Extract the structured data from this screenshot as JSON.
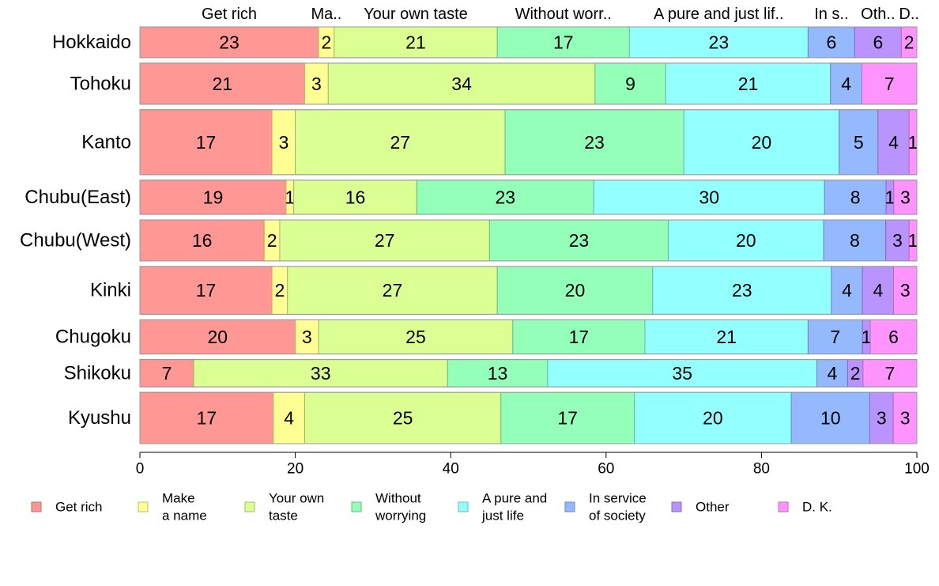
{
  "chart_data": {
    "type": "bar",
    "orientation": "horizontal",
    "stacked": true,
    "variable_width": true,
    "xlim": [
      0,
      100
    ],
    "xticks": [
      "0",
      "20",
      "40",
      "60",
      "80",
      "100"
    ],
    "categories": [
      "Hokkaido",
      "Tohoku",
      "Kanto",
      "Chubu(East)",
      "Chubu(West)",
      "Kinki",
      "Chugoku",
      "Shikoku",
      "Kyushu"
    ],
    "category_sizes": [
      0.9,
      1.2,
      1.9,
      1.0,
      1.2,
      1.4,
      1.0,
      0.8,
      1.5
    ],
    "top_labels": [
      "Get rich",
      "Ma..",
      "Your own taste",
      "Without worr..",
      "A pure and just lif..",
      "In s..",
      "Oth..",
      "D.."
    ],
    "series": [
      {
        "name": "Get rich",
        "legend": [
          "Get rich"
        ],
        "color": "#FF9794",
        "values": [
          23,
          21,
          17,
          19,
          16,
          17,
          20,
          7,
          17
        ]
      },
      {
        "name": "Make a name",
        "legend": [
          "Make",
          "a name"
        ],
        "color": "#FFFF94",
        "values": [
          2,
          3,
          3,
          1,
          2,
          2,
          3,
          0,
          4
        ]
      },
      {
        "name": "Your own taste",
        "legend": [
          "Your own",
          "taste"
        ],
        "color": "#DCFF94",
        "values": [
          21,
          34,
          27,
          16,
          27,
          27,
          25,
          33,
          25
        ]
      },
      {
        "name": "Without worrying",
        "legend": [
          "Without",
          "worrying"
        ],
        "color": "#94FFB9",
        "values": [
          17,
          9,
          23,
          23,
          23,
          20,
          17,
          13,
          17
        ]
      },
      {
        "name": "A pure and just life",
        "legend": [
          "A pure and",
          "just life"
        ],
        "color": "#94FFFF",
        "values": [
          23,
          21,
          20,
          30,
          20,
          23,
          21,
          35,
          20
        ]
      },
      {
        "name": "In service of society",
        "legend": [
          "In service",
          "of society"
        ],
        "color": "#94B9FF",
        "values": [
          6,
          4,
          5,
          8,
          8,
          4,
          7,
          4,
          10
        ]
      },
      {
        "name": "Other",
        "legend": [
          "Other"
        ],
        "color": "#B994FF",
        "values": [
          6,
          0,
          4,
          1,
          3,
          4,
          1,
          2,
          3
        ]
      },
      {
        "name": "D. K.",
        "legend": [
          "D. K."
        ],
        "color": "#FF94FF",
        "values": [
          2,
          7,
          1,
          3,
          1,
          3,
          6,
          7,
          3
        ]
      }
    ]
  }
}
